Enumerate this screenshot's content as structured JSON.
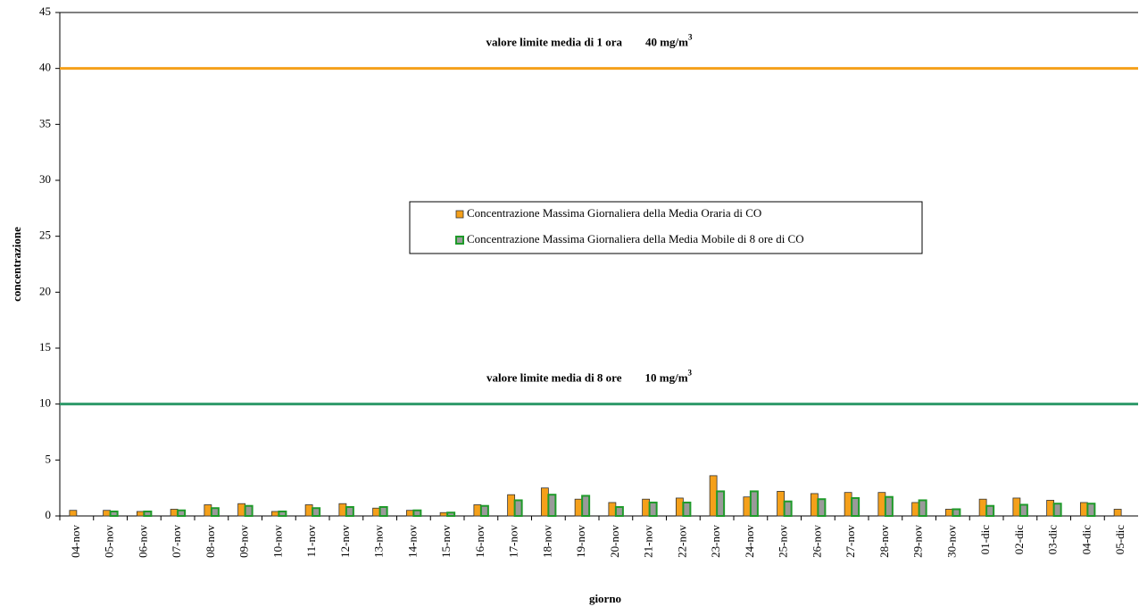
{
  "chart_data": {
    "type": "bar",
    "x_label": "giorno",
    "y_label": "concentrazione",
    "categories": [
      "04-nov",
      "05-nov",
      "06-nov",
      "07-nov",
      "08-nov",
      "09-nov",
      "10-nov",
      "11-nov",
      "12-nov",
      "13-nov",
      "14-nov",
      "15-nov",
      "16-nov",
      "17-nov",
      "18-nov",
      "19-nov",
      "20-nov",
      "21-nov",
      "22-nov",
      "23-nov",
      "24-nov",
      "25-nov",
      "26-nov",
      "27-nov",
      "28-nov",
      "29-nov",
      "30-nov",
      "01-dic",
      "02-dic",
      "03-dic",
      "04-dic",
      "05-dic"
    ],
    "series": [
      {
        "name": "Concentrazione Massima Giornaliera della Media Oraria di CO",
        "color": "#f5a01a",
        "border_color": "#333333",
        "values": [
          0.5,
          0.5,
          0.4,
          0.6,
          1.0,
          1.1,
          0.4,
          1.0,
          1.1,
          0.7,
          0.5,
          0.3,
          1.0,
          1.9,
          2.5,
          1.5,
          1.2,
          1.5,
          1.6,
          3.6,
          1.7,
          2.2,
          2.0,
          2.1,
          2.1,
          1.2,
          0.6,
          1.5,
          1.6,
          1.4,
          1.2,
          0.6
        ]
      },
      {
        "name": "Concentrazione Massima Giornaliera della Media Mobile di 8 ore di CO",
        "color": "#9a9a9a",
        "border_color": "#1f9a2a",
        "values": [
          null,
          0.4,
          0.4,
          0.5,
          0.7,
          0.9,
          0.4,
          0.7,
          0.8,
          0.8,
          0.5,
          0.3,
          0.9,
          1.4,
          1.9,
          1.8,
          0.8,
          1.2,
          1.2,
          2.2,
          2.2,
          1.3,
          1.5,
          1.6,
          1.7,
          1.4,
          0.6,
          0.9,
          1.0,
          1.1,
          1.1,
          null
        ]
      }
    ],
    "reference_lines": [
      {
        "value": 40,
        "color": "#f5a01a",
        "label": "valore limite media di 1 ora",
        "value_label": "40 mg/m",
        "exponent": "3"
      },
      {
        "value": 10,
        "color": "#2e9a6a",
        "label": "valore limite media di 8 ore",
        "value_label": "10 mg/m",
        "exponent": "3"
      }
    ],
    "ylim": [
      0,
      45
    ],
    "yticks": [
      0,
      5,
      10,
      15,
      20,
      25,
      30,
      35,
      40,
      45
    ],
    "grid": false
  }
}
